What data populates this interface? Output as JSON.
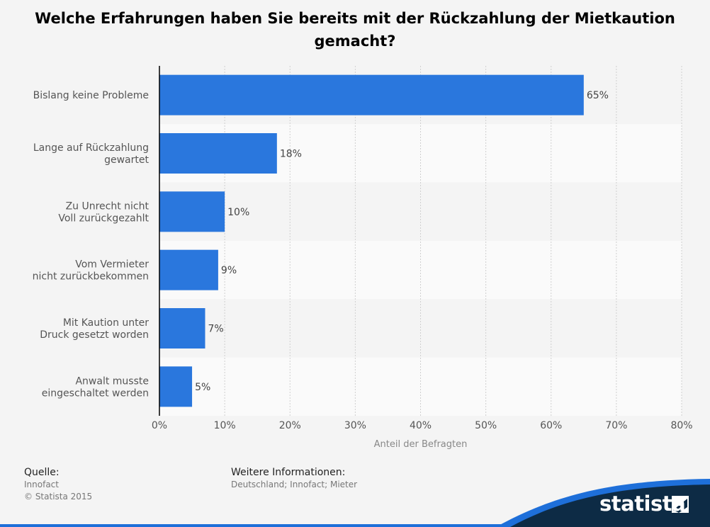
{
  "chart_data": {
    "type": "bar",
    "orientation": "horizontal",
    "title": "Welche Erfahrungen haben Sie bereits mit der Rückzahlung der Mietkaution\ngemacht?",
    "categories": [
      [
        "Bislang keine Probleme"
      ],
      [
        "Lange auf Rückzahlung",
        "gewartet"
      ],
      [
        "Zu Unrecht nicht",
        "Voll zurückgezahlt"
      ],
      [
        "Vom Vermieter",
        "nicht zurückbekommen"
      ],
      [
        "Mit Kaution unter",
        "Druck gesetzt worden"
      ],
      [
        "Anwalt musste",
        "eingeschaltet werden"
      ]
    ],
    "values": [
      65,
      18,
      10,
      9,
      7,
      5
    ],
    "value_labels": [
      "65%",
      "18%",
      "10%",
      "9%",
      "7%",
      "5%"
    ],
    "xlim": [
      0,
      80
    ],
    "xticks": [
      0,
      10,
      20,
      30,
      40,
      50,
      60,
      70,
      80
    ],
    "xtick_labels": [
      "0%",
      "10%",
      "20%",
      "30%",
      "40%",
      "50%",
      "60%",
      "70%",
      "80%"
    ],
    "xlabel": "Anteil der Befragten",
    "ylabel": "",
    "grid": true,
    "bar_color": "#2a77dd"
  },
  "footer": {
    "source_heading": "Quelle:",
    "source_lines": [
      "Innofact",
      "© Statista 2015"
    ],
    "info_heading": "Weitere Informationen:",
    "info_text": "Deutschland; Innofact; Mieter"
  },
  "brand": {
    "name": "statista",
    "color": "#0d2b45"
  }
}
